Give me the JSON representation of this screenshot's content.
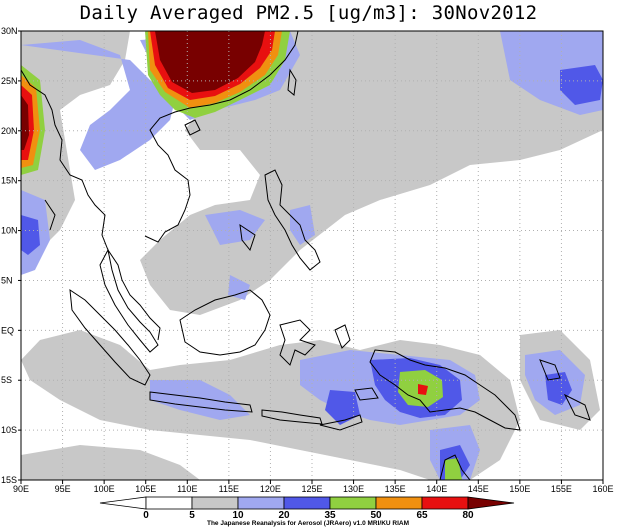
{
  "title": "Daily Averaged PM2.5 [ug/m3]: 30Nov2012",
  "colors": {
    "c0": "#ffffff",
    "c5": "#ffffff",
    "c10": "#c8c8c8",
    "c20": "#a0a8f0",
    "c35": "#5058e8",
    "c50": "#90d040",
    "c65": "#f09010",
    "c80": "#e81010",
    "cmax": "#780000",
    "coast": "#000000",
    "grid": "#b0b0b0"
  },
  "axes": {
    "lon_labels": [
      "90E",
      "95E",
      "100E",
      "105E",
      "110E",
      "115E",
      "120E",
      "125E",
      "130E",
      "135E",
      "140E",
      "145E",
      "150E",
      "155E",
      "160E"
    ],
    "lat_labels": [
      "30N",
      "25N",
      "20N",
      "15N",
      "10N",
      "5N",
      "EQ",
      "5S",
      "10S",
      "15S"
    ]
  },
  "colorbar": {
    "levels": [
      "0",
      "5",
      "10",
      "20",
      "35",
      "50",
      "65",
      "80"
    ]
  },
  "credit": "The Japanese Reanalysis for Aerosol (JRAero) v1.0 MRI/KU RIAM"
}
